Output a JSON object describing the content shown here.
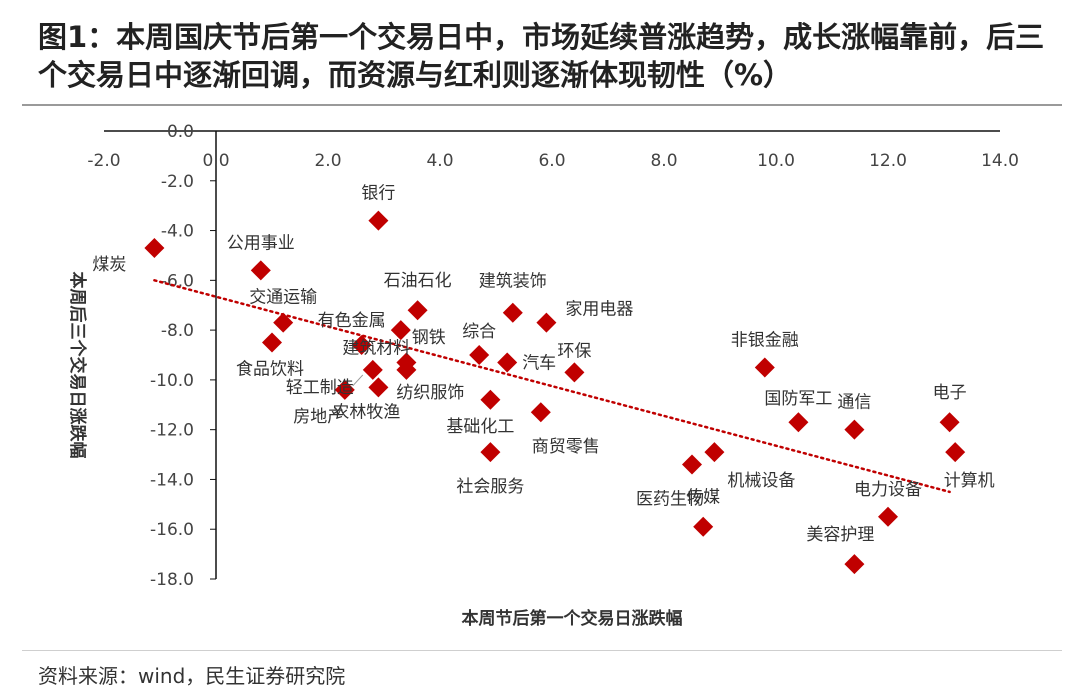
{
  "title": "图1：本周国庆节后第一个交易日中，市场延续普涨趋势，成长涨幅靠前，后三个交易日中逐渐回调，而资源与红利则逐渐体现韧性（%）",
  "source": "资料来源：wind，民生证券研究院",
  "chart_data": {
    "type": "scatter",
    "xlabel": "本周节后第一个交易日涨跌幅",
    "ylabel": "本周后三个交易日涨跌幅",
    "xlim": [
      -2.0,
      14.0
    ],
    "ylim": [
      -18.0,
      0.0
    ],
    "xticks": [
      "-2.0",
      "0.0",
      "2.0",
      "4.0",
      "6.0",
      "8.0",
      "10.0",
      "12.0",
      "14.0"
    ],
    "yticks": [
      "0.0",
      "-2.0",
      "-4.0",
      "-6.0",
      "-8.0",
      "-10.0",
      "-12.0",
      "-14.0",
      "-16.0",
      "-18.0"
    ],
    "marker_color": "#c00000",
    "trendline": {
      "style": "dotted",
      "color": "#c00000",
      "x": [
        -1.1,
        13.1
      ],
      "y": [
        -6.0,
        -14.5
      ]
    },
    "points": [
      {
        "name": "煤炭",
        "x": -1.1,
        "y": -4.7
      },
      {
        "name": "公用事业",
        "x": 0.8,
        "y": -5.6
      },
      {
        "name": "交通运输",
        "x": 1.2,
        "y": -7.7
      },
      {
        "name": "食品饮料",
        "x": 1.0,
        "y": -8.5
      },
      {
        "name": "银行",
        "x": 2.9,
        "y": -3.6
      },
      {
        "name": "石油石化",
        "x": 3.6,
        "y": -7.2
      },
      {
        "name": "有色金属",
        "x": 2.6,
        "y": -8.6
      },
      {
        "name": "钢铁",
        "x": 3.3,
        "y": -8.0
      },
      {
        "name": "建筑材料",
        "x": 3.4,
        "y": -9.3
      },
      {
        "name": "轻工制造",
        "x": 2.8,
        "y": -9.6
      },
      {
        "name": "房地产",
        "x": 2.3,
        "y": -10.4
      },
      {
        "name": "农林牧渔",
        "x": 2.9,
        "y": -10.3
      },
      {
        "name": "纺织服饰",
        "x": 3.4,
        "y": -9.6
      },
      {
        "name": "建筑装饰",
        "x": 5.3,
        "y": -7.3
      },
      {
        "name": "综合",
        "x": 4.7,
        "y": -9.0
      },
      {
        "name": "家用电器",
        "x": 5.9,
        "y": -7.7
      },
      {
        "name": "环保",
        "x": 6.4,
        "y": -9.7
      },
      {
        "name": "汽车",
        "x": 5.2,
        "y": -9.3
      },
      {
        "name": "基础化工",
        "x": 4.9,
        "y": -10.8
      },
      {
        "name": "商贸零售",
        "x": 5.8,
        "y": -11.3
      },
      {
        "name": "社会服务",
        "x": 4.9,
        "y": -12.9
      },
      {
        "name": "医药生物",
        "x": 8.5,
        "y": -13.4
      },
      {
        "name": "机械设备",
        "x": 8.9,
        "y": -12.9
      },
      {
        "name": "传媒",
        "x": 8.7,
        "y": -15.9
      },
      {
        "name": "非银金融",
        "x": 9.8,
        "y": -9.5
      },
      {
        "name": "国防军工",
        "x": 10.4,
        "y": -11.7
      },
      {
        "name": "通信",
        "x": 11.4,
        "y": -12.0
      },
      {
        "name": "电子",
        "x": 13.1,
        "y": -11.7
      },
      {
        "name": "计算机",
        "x": 13.2,
        "y": -12.9
      },
      {
        "name": "电力设备",
        "x": 12.0,
        "y": -15.5
      },
      {
        "name": "美容护理",
        "x": 11.4,
        "y": -17.4
      }
    ]
  }
}
